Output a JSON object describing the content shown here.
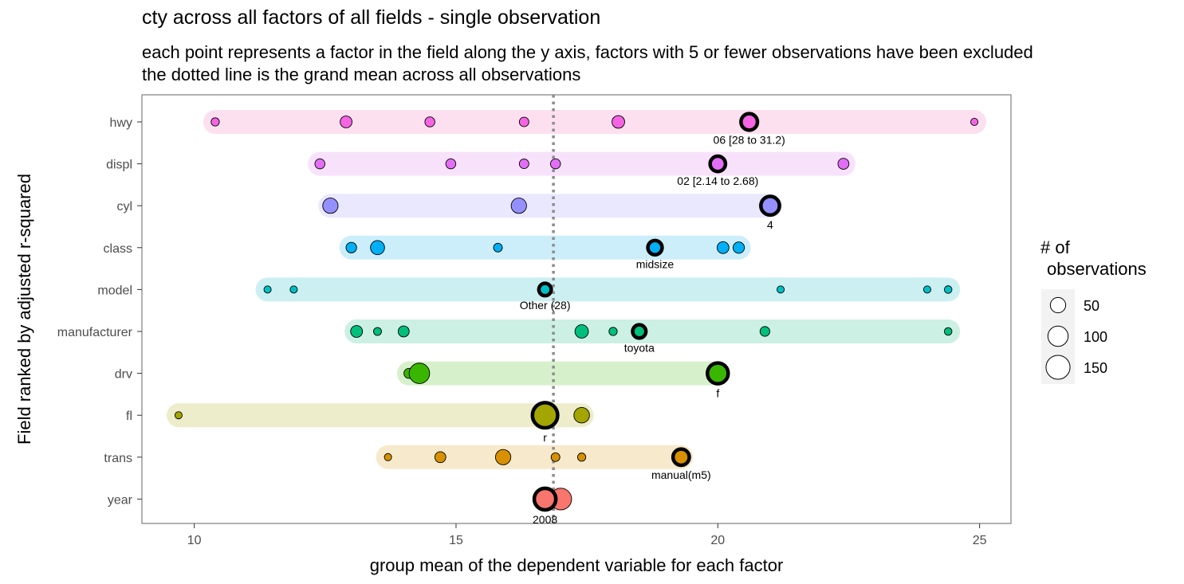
{
  "title": "cty across all factors of all fields - single observation",
  "subtitle_lines": [
    "each point represents a factor in the field along the y axis, factors with 5 or fewer observations have been excluded",
    "the dotted line is the grand mean across all observations"
  ],
  "chart_data": {
    "type": "scatter",
    "xlabel": "group mean of the dependent variable for each factor",
    "ylabel": "Field ranked by adjusted r-squared",
    "xlim": [
      9,
      25.6
    ],
    "xticks": [
      10,
      15,
      20,
      25
    ],
    "grand_mean": 16.86,
    "grid": false,
    "legend": {
      "title_lines": [
        "# of",
        "observations"
      ],
      "placement": "right",
      "sizes": [
        50,
        100,
        150
      ]
    },
    "fields": [
      {
        "name": "hwy",
        "color": "#F564E3",
        "band_color": "#FDE0EF",
        "range": [
          10.4,
          24.9
        ],
        "points": [
          {
            "x": 10.4,
            "n": 8
          },
          {
            "x": 12.9,
            "n": 25
          },
          {
            "x": 14.5,
            "n": 15
          },
          {
            "x": 16.3,
            "n": 13
          },
          {
            "x": 18.1,
            "n": 30
          },
          {
            "x": 20.6,
            "n": 60,
            "highlight": true
          },
          {
            "x": 24.9,
            "n": 5
          }
        ],
        "label": "06 [28 to 31.2)"
      },
      {
        "name": "displ",
        "color": "#E36EF6",
        "band_color": "#F8E2FB",
        "range": [
          12.4,
          22.4
        ],
        "points": [
          {
            "x": 12.4,
            "n": 15
          },
          {
            "x": 14.9,
            "n": 15
          },
          {
            "x": 16.3,
            "n": 13
          },
          {
            "x": 16.9,
            "n": 15
          },
          {
            "x": 20.0,
            "n": 50,
            "highlight": true
          },
          {
            "x": 22.4,
            "n": 20
          }
        ],
        "label": "02 [2.14 to 2.68)"
      },
      {
        "name": "cyl",
        "color": "#9590FF",
        "band_color": "#EAE8FE",
        "range": [
          12.6,
          21.0
        ],
        "points": [
          {
            "x": 12.6,
            "n": 50
          },
          {
            "x": 16.2,
            "n": 50
          },
          {
            "x": 21.0,
            "n": 81,
            "highlight": true
          }
        ],
        "label": "4"
      },
      {
        "name": "class",
        "color": "#00B0F6",
        "band_color": "#CCEEFB",
        "range": [
          13.0,
          20.4
        ],
        "points": [
          {
            "x": 13.0,
            "n": 18
          },
          {
            "x": 13.5,
            "n": 40
          },
          {
            "x": 15.8,
            "n": 10
          },
          {
            "x": 18.8,
            "n": 41,
            "highlight": true
          },
          {
            "x": 20.1,
            "n": 25
          },
          {
            "x": 20.4,
            "n": 22
          }
        ],
        "label": "midsize"
      },
      {
        "name": "model",
        "color": "#00BFC4",
        "band_color": "#CCF0F1",
        "range": [
          11.4,
          24.4
        ],
        "points": [
          {
            "x": 11.4,
            "n": 5
          },
          {
            "x": 11.9,
            "n": 5
          },
          {
            "x": 16.7,
            "n": 28,
            "highlight": true
          },
          {
            "x": 21.2,
            "n": 5
          },
          {
            "x": 24.0,
            "n": 5
          },
          {
            "x": 24.4,
            "n": 6
          }
        ],
        "label": "Other (28)"
      },
      {
        "name": "manufacturer",
        "color": "#00BF7D",
        "band_color": "#CCF0E4",
        "range": [
          13.1,
          24.4
        ],
        "points": [
          {
            "x": 13.1,
            "n": 25
          },
          {
            "x": 13.5,
            "n": 7
          },
          {
            "x": 14.0,
            "n": 20
          },
          {
            "x": 17.4,
            "n": 35
          },
          {
            "x": 18.0,
            "n": 8
          },
          {
            "x": 18.5,
            "n": 34,
            "highlight": true
          },
          {
            "x": 20.9,
            "n": 14
          },
          {
            "x": 24.4,
            "n": 6
          }
        ],
        "label": "toyota"
      },
      {
        "name": "drv",
        "color": "#39B600",
        "band_color": "#D7F0CC",
        "range": [
          14.1,
          20.0
        ],
        "points": [
          {
            "x": 14.1,
            "n": 15
          },
          {
            "x": 14.3,
            "n": 103
          },
          {
            "x": 20.0,
            "n": 106,
            "highlight": true
          }
        ],
        "label": "f"
      },
      {
        "name": "fl",
        "color": "#A3A500",
        "band_color": "#EDEDCC",
        "range": [
          9.7,
          17.4
        ],
        "points": [
          {
            "x": 9.7,
            "n": 5
          },
          {
            "x": 16.7,
            "n": 168,
            "highlight": true
          },
          {
            "x": 17.4,
            "n": 52
          }
        ],
        "label": "r"
      },
      {
        "name": "trans",
        "color": "#D89000",
        "band_color": "#F7E9CC",
        "range": [
          13.7,
          19.3
        ],
        "points": [
          {
            "x": 13.7,
            "n": 5
          },
          {
            "x": 14.7,
            "n": 20
          },
          {
            "x": 15.9,
            "n": 50
          },
          {
            "x": 16.9,
            "n": 10
          },
          {
            "x": 17.4,
            "n": 8
          },
          {
            "x": 19.3,
            "n": 58,
            "highlight": true
          }
        ],
        "label": "manual(m5)"
      },
      {
        "name": "year",
        "color": "#F8766D",
        "band_color": "#FDE4E2",
        "range": [
          16.7,
          17.0
        ],
        "points": [
          {
            "x": 17.0,
            "n": 117
          },
          {
            "x": 16.7,
            "n": 117,
            "highlight": true
          }
        ],
        "label": "2008"
      }
    ]
  }
}
